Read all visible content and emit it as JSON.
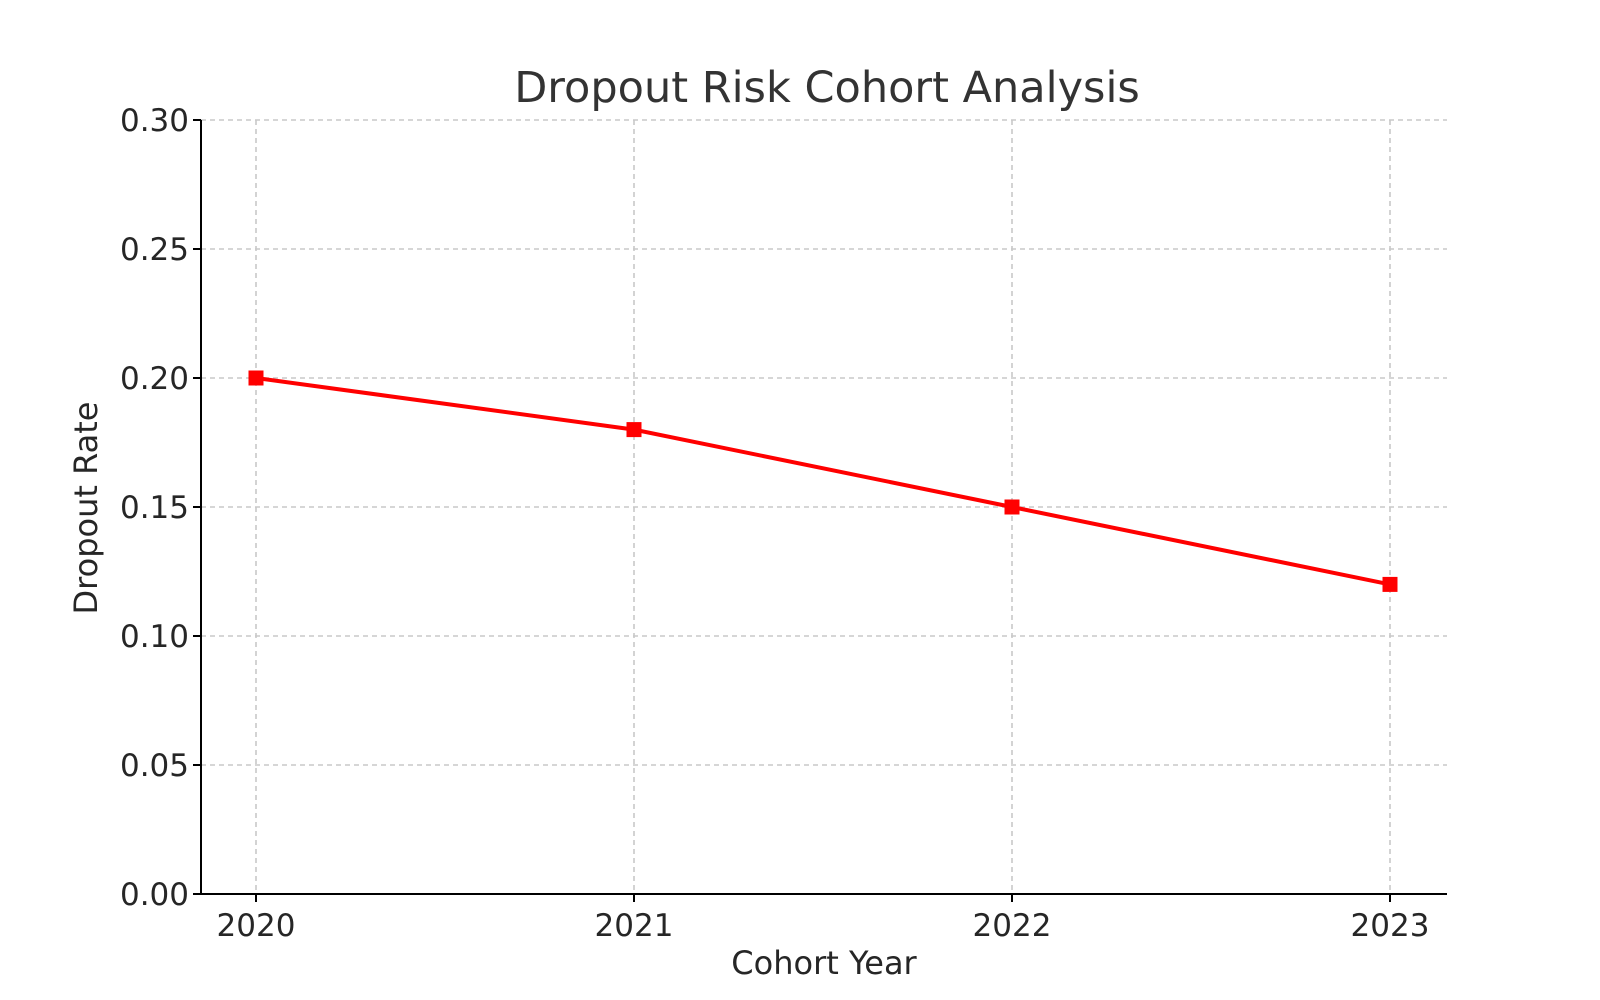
{
  "chart_data": {
    "type": "line",
    "title": "Dropout Risk Cohort Analysis",
    "xlabel": "Cohort Year",
    "ylabel": "Dropout Rate",
    "x": [
      "2020",
      "2021",
      "2022",
      "2023"
    ],
    "y_ticks": [
      "0.00",
      "0.05",
      "0.10",
      "0.15",
      "0.20",
      "0.25",
      "0.30"
    ],
    "ylim": [
      0.0,
      0.3
    ],
    "grid": true,
    "grid_style": "dashed",
    "marker": "square",
    "series": [
      {
        "values": [
          0.2,
          0.18,
          0.15,
          0.12
        ],
        "color": "#ff0000"
      }
    ]
  }
}
